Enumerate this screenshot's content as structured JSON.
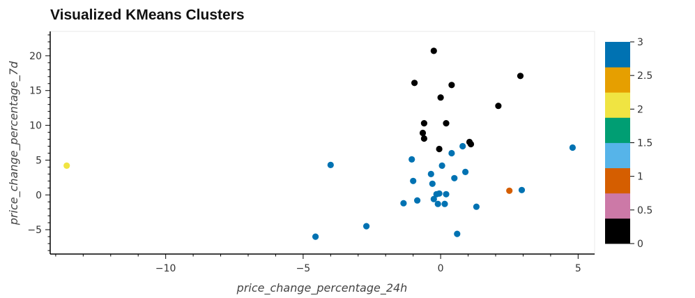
{
  "chart_data": {
    "type": "scatter",
    "title": "Visualized KMeans Clusters",
    "xlabel": "price_change_percentage_24h",
    "ylabel": "price_change_percentage_7d",
    "xlim": [
      -14.2,
      5.6
    ],
    "ylim": [
      -8.5,
      23.5
    ],
    "xticks": [
      -10,
      -5,
      0,
      5
    ],
    "yticks": [
      -5,
      0,
      5,
      10,
      15,
      20
    ],
    "grid": false,
    "colorbar": {
      "min": 0,
      "max": 3,
      "ticks": [
        0,
        0.5,
        1,
        1.5,
        2,
        2.5,
        3
      ],
      "palette": [
        "#000000",
        "#cc79a7",
        "#d55e00",
        "#56b4e9",
        "#009e73",
        "#f0e442",
        "#e69f00",
        "#0072b2"
      ]
    },
    "cluster_colors": {
      "0": "#0072b2",
      "1": "#000000",
      "2": "#f0e442",
      "3": "#d55e00"
    },
    "points": [
      {
        "x": -0.25,
        "y": 20.7,
        "cluster": 1
      },
      {
        "x": 2.9,
        "y": 17.1,
        "cluster": 1
      },
      {
        "x": -0.95,
        "y": 16.1,
        "cluster": 1
      },
      {
        "x": 0.4,
        "y": 15.8,
        "cluster": 1
      },
      {
        "x": 0.0,
        "y": 14.0,
        "cluster": 1
      },
      {
        "x": 2.1,
        "y": 12.8,
        "cluster": 1
      },
      {
        "x": -0.6,
        "y": 10.3,
        "cluster": 1
      },
      {
        "x": 0.2,
        "y": 10.3,
        "cluster": 1
      },
      {
        "x": -0.65,
        "y": 8.9,
        "cluster": 1
      },
      {
        "x": -0.6,
        "y": 8.1,
        "cluster": 1
      },
      {
        "x": 1.05,
        "y": 7.6,
        "cluster": 1
      },
      {
        "x": 1.1,
        "y": 7.3,
        "cluster": 1
      },
      {
        "x": -0.05,
        "y": 6.6,
        "cluster": 1
      },
      {
        "x": 4.8,
        "y": 6.8,
        "cluster": 0
      },
      {
        "x": 0.8,
        "y": 7.0,
        "cluster": 0
      },
      {
        "x": 0.4,
        "y": 6.0,
        "cluster": 0
      },
      {
        "x": -1.05,
        "y": 5.1,
        "cluster": 0
      },
      {
        "x": -4.0,
        "y": 4.3,
        "cluster": 0
      },
      {
        "x": 0.05,
        "y": 4.2,
        "cluster": 0
      },
      {
        "x": 0.9,
        "y": 3.3,
        "cluster": 0
      },
      {
        "x": -0.35,
        "y": 3.0,
        "cluster": 0
      },
      {
        "x": 0.5,
        "y": 2.4,
        "cluster": 0
      },
      {
        "x": -1.0,
        "y": 2.0,
        "cluster": 0
      },
      {
        "x": -0.3,
        "y": 1.6,
        "cluster": 0
      },
      {
        "x": 2.95,
        "y": 0.7,
        "cluster": 0
      },
      {
        "x": -0.15,
        "y": 0.1,
        "cluster": 0
      },
      {
        "x": -0.05,
        "y": 0.2,
        "cluster": 0
      },
      {
        "x": 0.2,
        "y": 0.1,
        "cluster": 0
      },
      {
        "x": -0.25,
        "y": -0.6,
        "cluster": 0
      },
      {
        "x": -0.85,
        "y": -0.8,
        "cluster": 0
      },
      {
        "x": -1.35,
        "y": -1.2,
        "cluster": 0
      },
      {
        "x": -0.1,
        "y": -1.3,
        "cluster": 0
      },
      {
        "x": 0.15,
        "y": -1.3,
        "cluster": 0
      },
      {
        "x": 1.3,
        "y": -1.7,
        "cluster": 0
      },
      {
        "x": -2.7,
        "y": -4.5,
        "cluster": 0
      },
      {
        "x": 0.6,
        "y": -5.6,
        "cluster": 0
      },
      {
        "x": -4.55,
        "y": -6.0,
        "cluster": 0
      },
      {
        "x": -13.6,
        "y": 4.2,
        "cluster": 2
      },
      {
        "x": 2.5,
        "y": 0.6,
        "cluster": 3
      }
    ]
  }
}
